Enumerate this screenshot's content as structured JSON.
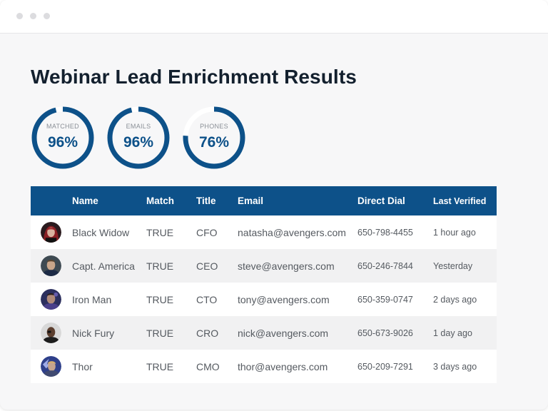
{
  "page_title": "Webinar Lead Enrichment Results",
  "stats": [
    {
      "label": "MATCHED",
      "value": "96%",
      "fraction": 0.96
    },
    {
      "label": "EMAILS",
      "value": "96%",
      "fraction": 0.96
    },
    {
      "label": "PHONES",
      "value": "76%",
      "fraction": 0.76
    }
  ],
  "colors": {
    "accent": "#0d5189",
    "header_text": "#ffffff"
  },
  "table": {
    "headers": [
      "Name",
      "Match",
      "Title",
      "Email",
      "Direct Dial",
      "Last Verified"
    ],
    "rows": [
      {
        "name": "Black Widow",
        "match": "TRUE",
        "title": "CFO",
        "email": "natasha@avengers.com",
        "dial": "650-798-4455",
        "verified": "1 hour ago"
      },
      {
        "name": "Capt. America",
        "match": "TRUE",
        "title": "CEO",
        "email": "steve@avengers.com",
        "dial": "650-246-7844",
        "verified": "Yesterday"
      },
      {
        "name": "Iron Man",
        "match": "TRUE",
        "title": "CTO",
        "email": "tony@avengers.com",
        "dial": "650-359-0747",
        "verified": "2 days ago"
      },
      {
        "name": "Nick Fury",
        "match": "TRUE",
        "title": "CRO",
        "email": "nick@avengers.com",
        "dial": "650-673-9026",
        "verified": "1 day ago"
      },
      {
        "name": "Thor",
        "match": "TRUE",
        "title": "CMO",
        "email": "thor@avengers.com",
        "dial": "650-209-7291",
        "verified": "3 days ago"
      }
    ]
  }
}
